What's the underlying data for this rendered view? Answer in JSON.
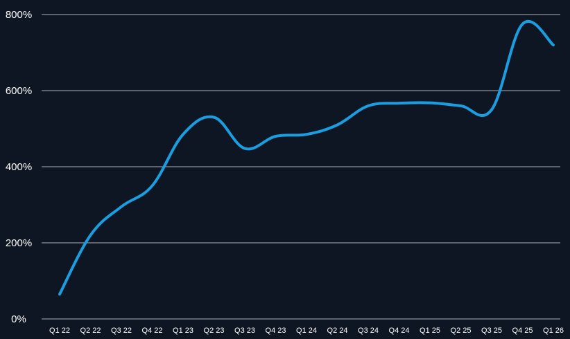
{
  "chart_data": {
    "type": "line",
    "title": "",
    "xlabel": "",
    "ylabel": "",
    "categories": [
      "Q1 22",
      "Q2 22",
      "Q3 22",
      "Q4 22",
      "Q1 23",
      "Q2 23",
      "Q3 23",
      "Q4 23",
      "Q1 24",
      "Q2 24",
      "Q3 24",
      "Q4 24",
      "Q1 25",
      "Q2 25",
      "Q3 25",
      "Q4 25",
      "Q1 26"
    ],
    "y_ticks": [
      {
        "value": 0,
        "label": "0%"
      },
      {
        "value": 200,
        "label": "200%"
      },
      {
        "value": 400,
        "label": "400%"
      },
      {
        "value": 600,
        "label": "600%"
      },
      {
        "value": 800,
        "label": "800%"
      }
    ],
    "ylim": [
      0,
      800
    ],
    "grid": true,
    "legend": "none",
    "series": [
      {
        "values": [
          65,
          220,
          295,
          350,
          485,
          530,
          448,
          480,
          485,
          510,
          560,
          567,
          568,
          560,
          550,
          775,
          720
        ],
        "color": "#1a9ee0"
      }
    ]
  }
}
